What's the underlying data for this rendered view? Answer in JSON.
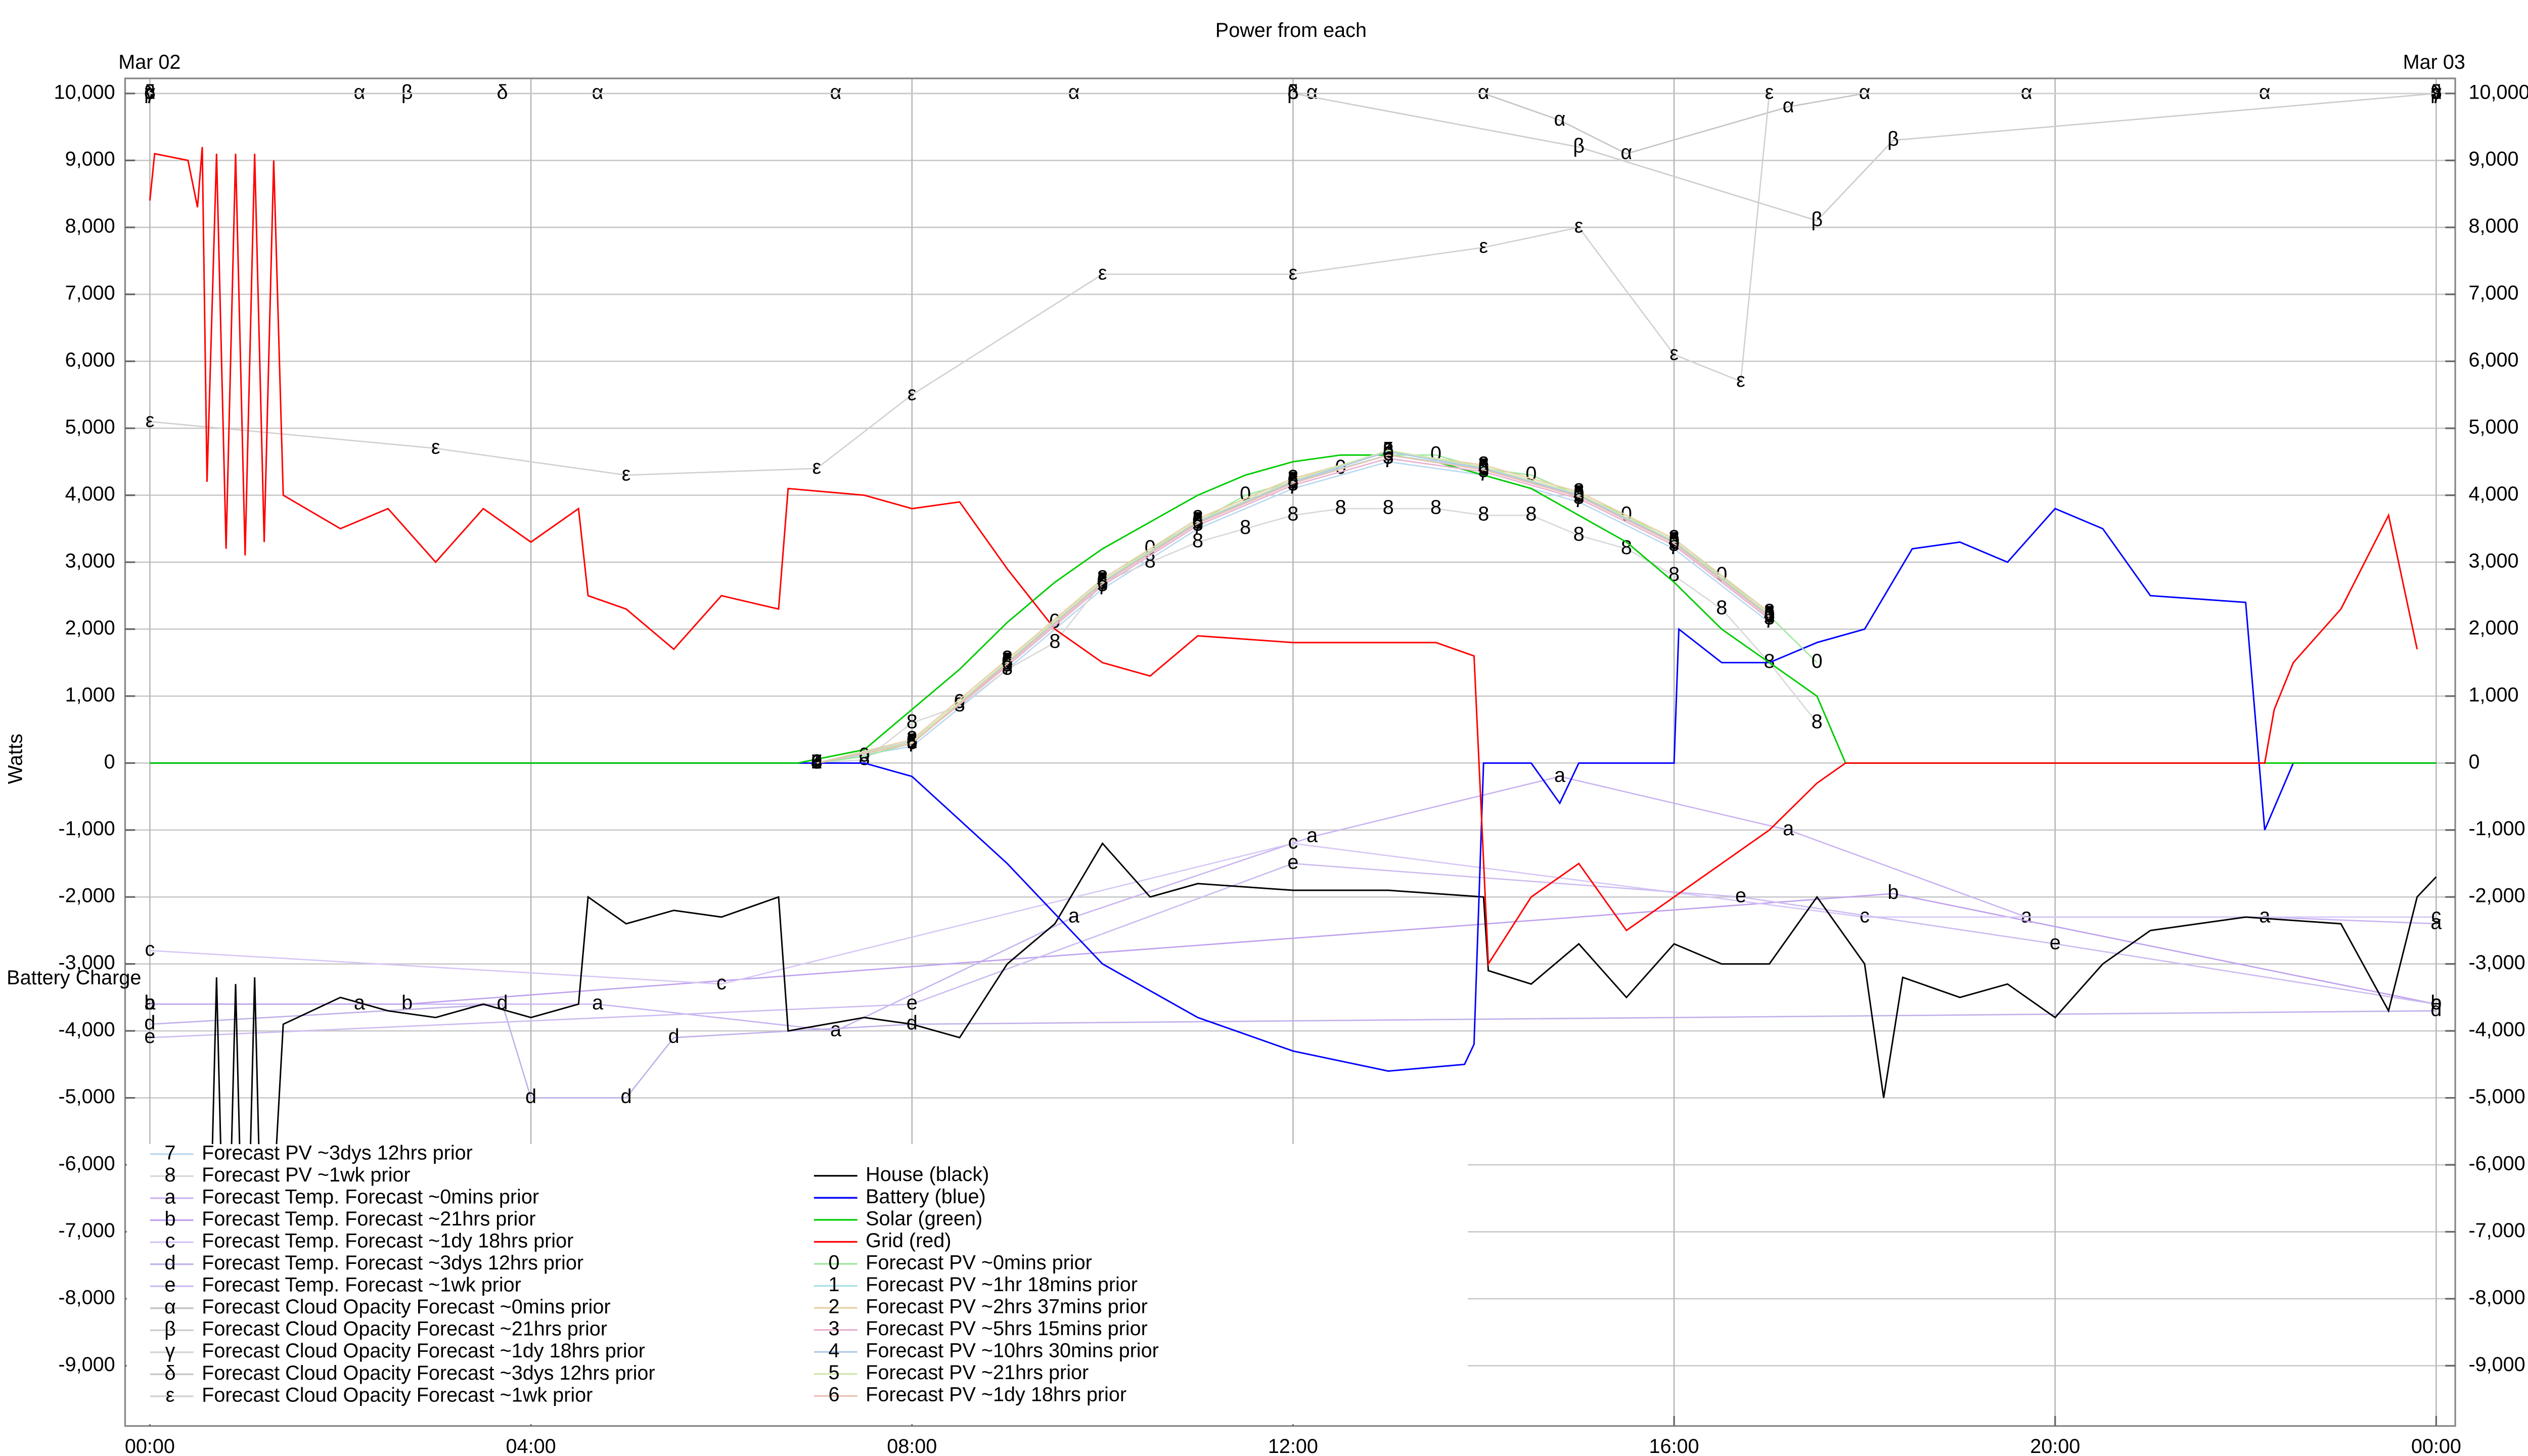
{
  "chart_data": {
    "type": "line",
    "title": "Power from each",
    "ylabel": "Watts",
    "date_start": "Mar 02",
    "date_end": "Mar 03",
    "y_annotation": "Battery Charge",
    "grid": true,
    "xlim": [
      -0.26,
      24.2
    ],
    "ylim": [
      -9900,
      10225
    ],
    "xticks": [
      {
        "value": 0,
        "label": "00:00"
      },
      {
        "value": 4,
        "label": "04:00"
      },
      {
        "value": 8,
        "label": "08:00"
      },
      {
        "value": 12,
        "label": "12:00"
      },
      {
        "value": 16,
        "label": "16:00"
      },
      {
        "value": 20,
        "label": "20:00"
      },
      {
        "value": 24,
        "label": "00:00"
      }
    ],
    "yticks": [
      {
        "value": -9000,
        "label": "-9,000"
      },
      {
        "value": -8000,
        "label": "-8,000"
      },
      {
        "value": -7000,
        "label": "-7,000"
      },
      {
        "value": -6000,
        "label": "-6,000"
      },
      {
        "value": -5000,
        "label": "-5,000"
      },
      {
        "value": -4000,
        "label": "-4,000"
      },
      {
        "value": -3000,
        "label": "-3,000"
      },
      {
        "value": -2000,
        "label": "-2,000"
      },
      {
        "value": -1000,
        "label": "-1,000"
      },
      0,
      {
        "value": 1000,
        "label": "1,000"
      },
      {
        "value": 2000,
        "label": "2,000"
      },
      {
        "value": 3000,
        "label": "3,000"
      },
      {
        "value": 4000,
        "label": "4,000"
      },
      {
        "value": 5000,
        "label": "5,000"
      },
      {
        "value": 6000,
        "label": "6,000"
      },
      {
        "value": 7000,
        "label": "7,000"
      },
      {
        "value": 8000,
        "label": "8,000"
      },
      {
        "value": 9000,
        "label": "9,000"
      },
      {
        "value": 10000,
        "label": "10,000"
      }
    ],
    "series": [
      {
        "name": "Forecast PV ~3dys 12hrs prior",
        "symbol": "7",
        "color": "#b8d8f0",
        "x": [
          7,
          8,
          9,
          10,
          11,
          12,
          13,
          14,
          15,
          16,
          17
        ],
        "values": [
          0,
          250,
          1400,
          2600,
          3500,
          4100,
          4500,
          4300,
          3900,
          3200,
          2100
        ]
      },
      {
        "name": "Forecast PV ~1wk prior",
        "symbol": "8",
        "color": "#d8d8d8",
        "x": [
          7,
          7.5,
          8,
          8.5,
          9,
          9.5,
          10,
          10.5,
          11,
          11.5,
          12,
          12.5,
          13,
          13.5,
          14,
          14.5,
          15,
          15.5,
          16,
          16.5,
          17,
          17.5
        ],
        "values": [
          0,
          50,
          600,
          850,
          1400,
          1800,
          2700,
          3000,
          3300,
          3500,
          3700,
          3800,
          3800,
          3800,
          3700,
          3700,
          3400,
          3200,
          2800,
          2300,
          1500,
          600
        ]
      },
      {
        "name": "Forecast Temp. Forecast ~0mins prior",
        "symbol": "a",
        "color": "#c9b3f2",
        "x": [
          0,
          2.2,
          4.7,
          7.2,
          9.7,
          12.2,
          14.8,
          17.2,
          19.7,
          22.2,
          24
        ],
        "values": [
          -3600,
          -3600,
          -3600,
          -4000,
          -2300,
          -1100,
          -200,
          -1000,
          -2300,
          -2300,
          -2400
        ]
      },
      {
        "name": "Forecast Temp. Forecast ~21hrs prior",
        "symbol": "b",
        "color": "#bfa0ee",
        "x": [
          0,
          2.7,
          18.3,
          24
        ],
        "values": [
          -3600,
          -3600,
          -1950,
          -3600
        ]
      },
      {
        "name": "Forecast Temp. Forecast ~1dy 18hrs prior",
        "symbol": "c",
        "color": "#d6c6f6",
        "x": [
          0,
          6,
          12,
          18,
          24
        ],
        "values": [
          -2800,
          -3300,
          -1200,
          -2300,
          -2300
        ]
      },
      {
        "name": "Forecast Temp. Forecast ~3dys 12hrs prior",
        "symbol": "d",
        "color": "#c0b0e8",
        "x": [
          0,
          3.7,
          4,
          5,
          5.5,
          8,
          24
        ],
        "values": [
          -3900,
          -3600,
          -5000,
          -5000,
          -4100,
          -3900,
          -3700
        ]
      },
      {
        "name": "Forecast Temp. Forecast ~1wk prior",
        "symbol": "e",
        "color": "#ccbcf0",
        "x": [
          0,
          8,
          12,
          16.7,
          20,
          24
        ],
        "values": [
          -4100,
          -3600,
          -1500,
          -2000,
          -2700,
          -3600
        ]
      },
      {
        "name": "Forecast Cloud Opacity Forecast ~0mins prior",
        "symbol": "α",
        "color": "#c4c4c4",
        "x": [
          0,
          2.2,
          4.7,
          7.2,
          9.7,
          12.2,
          14,
          14.8,
          15.5,
          17.2,
          18,
          19.7,
          22.2,
          24
        ],
        "values": [
          10000,
          10000,
          10000,
          10000,
          10000,
          10000,
          10000,
          9600,
          9100,
          9800,
          10000,
          10000,
          10000,
          10000
        ]
      },
      {
        "name": "Forecast Cloud Opacity Forecast ~21hrs prior",
        "symbol": "β",
        "color": "#cccccc",
        "x": [
          0,
          2.7,
          12,
          15,
          17.5,
          18.3,
          24
        ],
        "values": [
          10000,
          10000,
          10000,
          9200,
          8100,
          9300,
          10000
        ]
      },
      {
        "name": "Forecast Cloud Opacity Forecast ~1dy 18hrs prior",
        "symbol": "γ",
        "color": "#d4d4d4",
        "x": [
          0,
          24
        ],
        "values": [
          10000,
          10000
        ]
      },
      {
        "name": "Forecast Cloud Opacity Forecast ~3dys 12hrs prior",
        "symbol": "δ",
        "color": "#c8c8c8",
        "x": [
          0,
          3.7,
          12,
          24
        ],
        "values": [
          10000,
          10000,
          10000,
          10000
        ]
      },
      {
        "name": "Forecast Cloud Opacity Forecast ~1wk prior",
        "symbol": "ε",
        "color": "#d0d0d0",
        "x": [
          0,
          3,
          5,
          7,
          8,
          10,
          12,
          14,
          15,
          16,
          16.7,
          17,
          24
        ],
        "values": [
          5100,
          4700,
          4300,
          4400,
          5500,
          7300,
          7300,
          7700,
          8000,
          6100,
          5700,
          10000,
          10000
        ]
      },
      {
        "name": "House (black)",
        "color": "#000000",
        "x": [
          0.6,
          0.7,
          0.8,
          0.9,
          1.0,
          1.1,
          1.2,
          1.4,
          2,
          2.5,
          3,
          3.5,
          4,
          4.5,
          4.6,
          5,
          5.5,
          6,
          6.6,
          6.7,
          7.5,
          8,
          8.5,
          9,
          9.5,
          10,
          10.5,
          11,
          12,
          13,
          14,
          14.05,
          14.5,
          15,
          15.5,
          16,
          16.5,
          17,
          17.5,
          18,
          18.2,
          18.4,
          19,
          19.5,
          20,
          20.5,
          21,
          22,
          23,
          23.5,
          23.8,
          24
        ],
        "values": [
          -9000,
          -3200,
          -9000,
          -3300,
          -9000,
          -3200,
          -9000,
          -3900,
          -3500,
          -3700,
          -3800,
          -3600,
          -3800,
          -3600,
          -2000,
          -2400,
          -2200,
          -2300,
          -2000,
          -4000,
          -3800,
          -3900,
          -4100,
          -3000,
          -2400,
          -1200,
          -2000,
          -1800,
          -1900,
          -1900,
          -2000,
          -3100,
          -3300,
          -2700,
          -3500,
          -2700,
          -3000,
          -3000,
          -2000,
          -3000,
          -5000,
          -3200,
          -3500,
          -3300,
          -3800,
          -3000,
          -2500,
          -2300,
          -2400,
          -3700,
          -2000,
          -1700
        ]
      },
      {
        "name": "Battery (blue)",
        "color": "#0000ff",
        "x": [
          0,
          6.7,
          7.5,
          8,
          9,
          10,
          11,
          12,
          13,
          13.8,
          13.9,
          14,
          14.5,
          14.8,
          15,
          15.5,
          16,
          16.05,
          16.5,
          17,
          17.5,
          18,
          18.5,
          19,
          19.5,
          20,
          20.5,
          21,
          22,
          22.2,
          22.5,
          23,
          24
        ],
        "values": [
          0,
          0,
          0,
          -200,
          -1500,
          -3000,
          -3800,
          -4300,
          -4600,
          -4500,
          -4200,
          0,
          0,
          -600,
          0,
          0,
          0,
          2000,
          1500,
          1500,
          1800,
          2000,
          3200,
          3300,
          3000,
          3800,
          3500,
          2500,
          2400,
          -1000,
          0,
          0,
          0
        ]
      },
      {
        "name": "Solar (green)",
        "color": "#00cc00",
        "x": [
          0,
          6.8,
          7.5,
          8,
          8.5,
          9,
          9.5,
          10,
          10.5,
          11,
          11.5,
          12,
          12.5,
          13,
          13.5,
          14,
          14.5,
          15,
          15.5,
          16,
          16.5,
          17,
          17.5,
          17.8,
          24
        ],
        "values": [
          0,
          0,
          200,
          800,
          1400,
          2100,
          2700,
          3200,
          3600,
          4000,
          4300,
          4500,
          4600,
          4600,
          4500,
          4300,
          4100,
          3700,
          3300,
          2700,
          2000,
          1500,
          1000,
          0,
          0
        ]
      },
      {
        "name": "Grid (red)",
        "color": "#ff0000",
        "x": [
          0,
          0.05,
          0.4,
          0.5,
          0.55,
          0.6,
          0.7,
          0.8,
          0.9,
          1.0,
          1.1,
          1.2,
          1.3,
          1.4,
          2,
          2.5,
          3,
          3.5,
          4,
          4.5,
          4.6,
          5,
          5.5,
          6,
          6.6,
          6.7,
          7.5,
          8,
          8.5,
          9,
          9.5,
          10,
          10.5,
          11,
          12,
          13,
          13.5,
          13.9,
          14.05,
          14.5,
          15,
          15.5,
          16,
          16.5,
          17,
          17.5,
          17.8,
          20,
          22,
          22.2,
          22.3,
          22.5,
          23,
          23.5,
          23.8
        ],
        "values": [
          8400,
          9100,
          9000,
          8300,
          9200,
          4200,
          9100,
          3200,
          9100,
          3100,
          9100,
          3300,
          9000,
          4000,
          3500,
          3800,
          3000,
          3800,
          3300,
          3800,
          2500,
          2300,
          1700,
          2500,
          2300,
          4100,
          4000,
          3800,
          3900,
          2900,
          2000,
          1500,
          1300,
          1900,
          1800,
          1800,
          1800,
          1600,
          -3000,
          -2000,
          -1500,
          -2500,
          -2000,
          -1500,
          -1000,
          -300,
          0,
          0,
          0,
          0,
          800,
          1500,
          2300,
          3700,
          1700
        ]
      },
      {
        "name": "Forecast PV ~0mins prior",
        "symbol": "0",
        "color": "#9ee89e",
        "x": [
          7,
          7.5,
          8,
          8.5,
          9,
          9.5,
          10,
          10.5,
          11,
          11.5,
          12,
          12.5,
          13,
          13.5,
          14,
          14.5,
          15,
          15.5,
          16,
          16.5,
          17,
          17.5
        ],
        "values": [
          0,
          100,
          300,
          900,
          1500,
          2100,
          2700,
          3200,
          3600,
          4000,
          4200,
          4400,
          4600,
          4600,
          4400,
          4300,
          4000,
          3700,
          3300,
          2800,
          2200,
          1500
        ]
      },
      {
        "name": "Forecast PV ~1hr 18mins prior",
        "symbol": "1",
        "color": "#a8e0e8",
        "x": [
          7,
          8,
          9,
          10,
          11,
          12,
          13,
          14,
          15,
          16,
          17
        ],
        "values": [
          0,
          300,
          1500,
          2700,
          3600,
          4200,
          4600,
          4400,
          4000,
          3300,
          2200
        ]
      },
      {
        "name": "Forecast PV ~2hrs 37mins prior",
        "symbol": "2",
        "color": "#e8d0a8",
        "x": [
          7,
          8,
          9,
          10,
          11,
          12,
          13,
          14,
          15,
          16,
          17
        ],
        "values": [
          0,
          350,
          1550,
          2750,
          3650,
          4250,
          4650,
          4450,
          4050,
          3350,
          2250
        ]
      },
      {
        "name": "Forecast PV ~5hrs 15mins prior",
        "symbol": "3",
        "color": "#e8b0d0",
        "x": [
          7,
          8,
          9,
          10,
          11,
          12,
          13,
          14,
          15,
          16,
          17
        ],
        "values": [
          0,
          300,
          1450,
          2650,
          3550,
          4150,
          4550,
          4350,
          3950,
          3250,
          2150
        ]
      },
      {
        "name": "Forecast PV ~10hrs 30mins prior",
        "symbol": "4",
        "color": "#b0c8e8",
        "x": [
          7,
          8,
          9,
          10,
          11,
          12,
          13,
          14,
          15,
          16,
          17
        ],
        "values": [
          0,
          320,
          1500,
          2700,
          3600,
          4200,
          4650,
          4400,
          4000,
          3300,
          2200
        ]
      },
      {
        "name": "Forecast PV ~21hrs prior",
        "symbol": "5",
        "color": "#d0e8b0",
        "x": [
          7,
          8,
          9,
          10,
          11,
          12,
          13,
          14,
          15,
          16,
          17
        ],
        "values": [
          0,
          310,
          1520,
          2720,
          3620,
          4220,
          4670,
          4420,
          4020,
          3320,
          2220
        ]
      },
      {
        "name": "Forecast PV ~1dy 18hrs prior",
        "symbol": "6",
        "color": "#e8c0b0",
        "x": [
          7,
          8,
          9,
          10,
          11,
          12,
          13,
          14,
          15,
          16,
          17
        ],
        "values": [
          0,
          290,
          1480,
          2680,
          3580,
          4180,
          4600,
          4380,
          3980,
          3280,
          2180
        ]
      }
    ]
  }
}
